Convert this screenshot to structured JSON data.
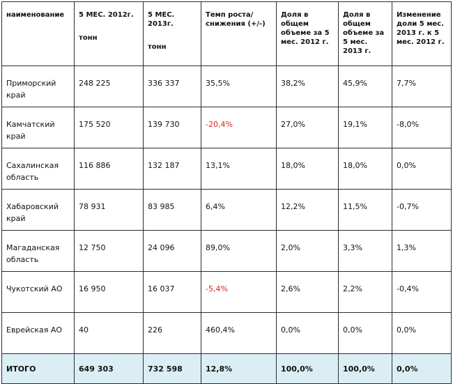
{
  "headers": [
    {
      "label": "наименование",
      "unit": ""
    },
    {
      "label": "5 МЕС. 2012г.",
      "unit": "тонн"
    },
    {
      "label": "5 МЕС. 2013г.",
      "unit": "тонн"
    },
    {
      "label": "Темп роста/ снижения (+/-)",
      "unit": ""
    },
    {
      "label": "Доля в общем объеме за 5 мес. 2012 г.",
      "unit": ""
    },
    {
      "label": "Доля в общем объеме за 5 мес. 2013 г.",
      "unit": ""
    },
    {
      "label": "Изменение доли 5 мес. 2013 г. к 5 мес. 2012 г.",
      "unit": ""
    }
  ],
  "rows": [
    {
      "name": "Приморский край",
      "y2012": "248 225",
      "y2013": "336 337",
      "growth": "35,5%",
      "share2012": "38,2%",
      "share2013": "45,9%",
      "share_change": "7,7%"
    },
    {
      "name": "Камчатский край",
      "y2012": "175 520",
      "y2013": "139 730",
      "growth": "-20,4%",
      "share2012": "27,0%",
      "share2013": "19,1%",
      "share_change": "-8,0%"
    },
    {
      "name": "Сахалинская область",
      "y2012": "116 886",
      "y2013": "132 187",
      "growth": "13,1%",
      "share2012": "18,0%",
      "share2013": "18,0%",
      "share_change": "0,0%"
    },
    {
      "name": "Хабаровский край",
      "y2012": "78 931",
      "y2013": "83 985",
      "growth": "6,4%",
      "share2012": "12,2%",
      "share2013": "11,5%",
      "share_change": "-0,7%"
    },
    {
      "name": "Магаданская область",
      "y2012": "12 750",
      "y2013": "24 096",
      "growth": "89,0%",
      "share2012": "2,0%",
      "share2013": "3,3%",
      "share_change": "1,3%"
    },
    {
      "name": "Чукотский АО",
      "y2012": "16 950",
      "y2013": "16 037",
      "growth": "-5,4%",
      "share2012": "2,6%",
      "share2013": "2,2%",
      "share_change": "-0,4%"
    },
    {
      "name": "Еврейская АО",
      "y2012": "40",
      "y2013": "226",
      "growth": "460,4%",
      "share2012": "0,0%",
      "share2013": "0,0%",
      "share_change": "0,0%"
    }
  ],
  "total": {
    "name": "ИТОГО",
    "y2012": "649 303",
    "y2013": "732 598",
    "growth": "12,8%",
    "share2012": "100,0%",
    "share2013": "100,0%",
    "share_change": "0,0%"
  },
  "colors": {
    "negative": "#e0201b",
    "total_bg": "#dbeef4",
    "border": "#2b2b2b"
  }
}
